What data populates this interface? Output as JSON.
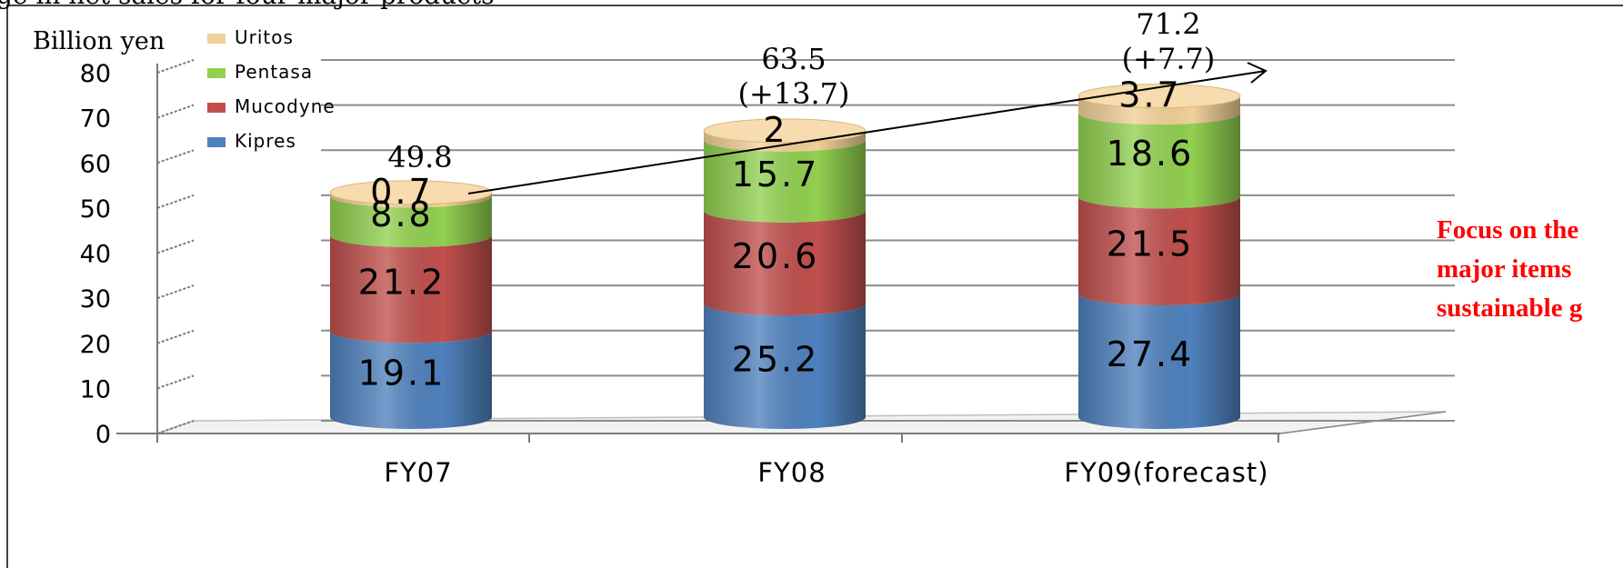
{
  "header_fragment": "ge in net sales for four major products",
  "chart_data": {
    "type": "bar",
    "stacked": true,
    "categories": [
      "FY07",
      "FY08",
      "FY09(forecast)"
    ],
    "series": [
      {
        "name": "Kipres",
        "values": [
          19.1,
          25.2,
          27.4
        ],
        "color": "#4f81bd"
      },
      {
        "name": "Mucodyne",
        "values": [
          21.2,
          20.6,
          21.5
        ],
        "color": "#c0504d"
      },
      {
        "name": "Pentasa",
        "values": [
          8.8,
          15.7,
          18.6
        ],
        "color": "#92d050"
      },
      {
        "name": "Uritos",
        "values": [
          0.7,
          2,
          3.7
        ],
        "color": "#f2d199"
      }
    ],
    "value_labels": [
      [
        "19.1",
        "21.2",
        "8.8",
        "0.7"
      ],
      [
        "25.2",
        "20.6",
        "15.7",
        "2"
      ],
      [
        "27.4",
        "21.5",
        "18.6",
        "3.7"
      ]
    ],
    "totals": [
      "49.8",
      "63.5",
      "71.2"
    ],
    "changes": [
      "",
      "(+13.7)",
      "(+7.7)"
    ],
    "ylabel": "Billion yen",
    "ylim": [
      0,
      80
    ],
    "yticks": [
      "0",
      "10",
      "20",
      "30",
      "40",
      "50",
      "60",
      "70",
      "80"
    ],
    "legend_order": [
      "Uritos",
      "Pentasa",
      "Mucodyne",
      "Kipres"
    ],
    "legend_position": "top-left",
    "grid": true,
    "three_d": true
  },
  "note_lines": [
    "Focus on the",
    "major  items",
    "sustainable g"
  ]
}
